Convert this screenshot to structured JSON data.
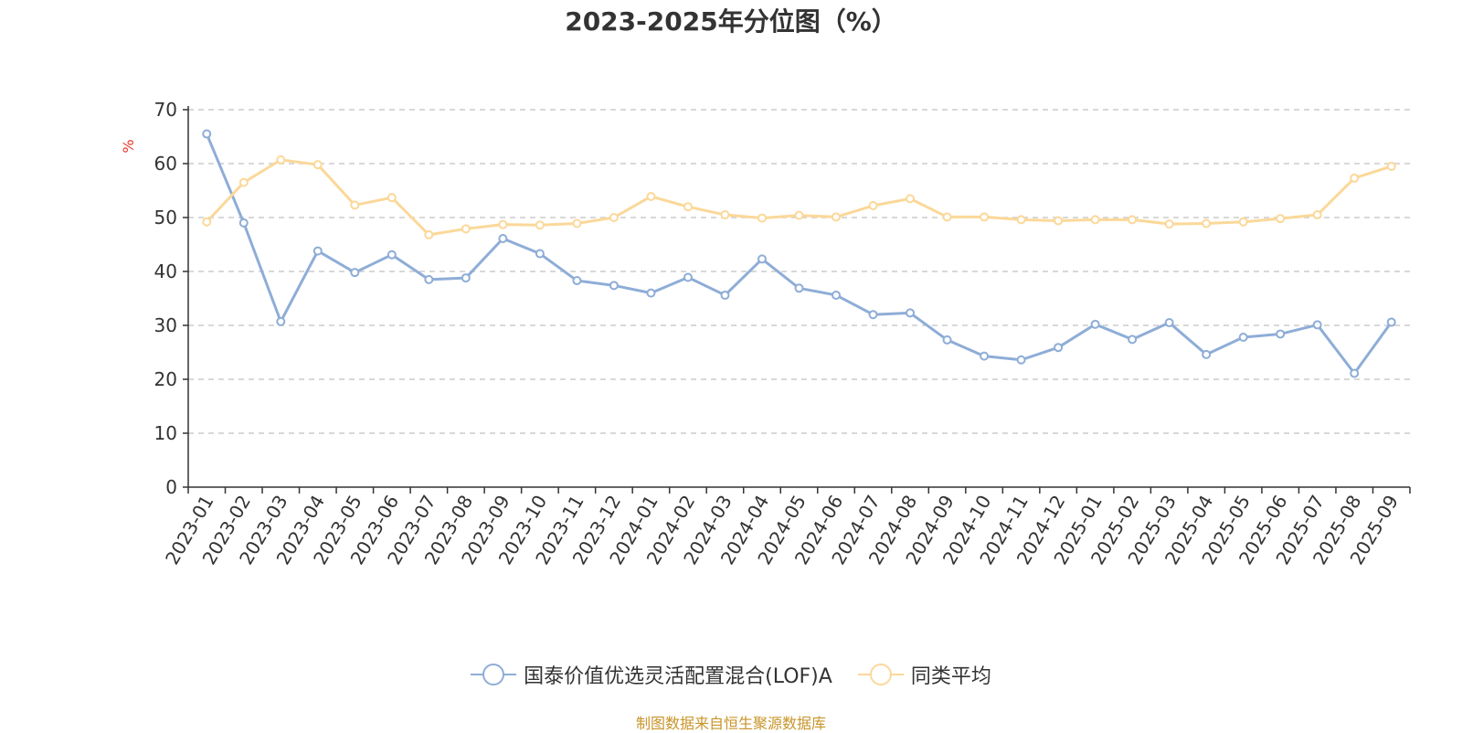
{
  "chart_data": {
    "type": "line",
    "title": "2023-2025年分位图（%）",
    "ylabel": "%",
    "ylim": [
      0,
      70
    ],
    "yticks": [
      0,
      10,
      20,
      30,
      40,
      50,
      60,
      70
    ],
    "grid": "horizontal-dashed",
    "legend_position": "bottom-center",
    "categories": [
      "2023-01",
      "2023-02",
      "2023-03",
      "2023-04",
      "2023-05",
      "2023-06",
      "2023-07",
      "2023-08",
      "2023-09",
      "2023-10",
      "2023-11",
      "2023-12",
      "2024-01",
      "2024-02",
      "2024-03",
      "2024-04",
      "2024-05",
      "2024-06",
      "2024-07",
      "2024-08",
      "2024-09",
      "2024-10",
      "2024-11",
      "2024-12",
      "2025-01",
      "2025-02",
      "2025-03",
      "2025-04",
      "2025-05",
      "2025-06",
      "2025-07",
      "2025-08",
      "2025-09"
    ],
    "series": [
      {
        "name": "国泰价值优选灵活配置混合(LOF)A",
        "color": "#8eadd7",
        "values": [
          65.5,
          49,
          30.7,
          43.8,
          39.8,
          43.1,
          38.5,
          38.8,
          46.1,
          43.3,
          38.3,
          37.4,
          36,
          38.9,
          35.6,
          42.3,
          36.9,
          35.6,
          32,
          32.3,
          27.3,
          24.3,
          23.6,
          25.9,
          30.2,
          27.4,
          30.5,
          24.6,
          27.8,
          28.4,
          30.1,
          21.1,
          30.6
        ]
      },
      {
        "name": "同类平均",
        "color": "#fbd899",
        "values": [
          49.2,
          56.5,
          60.7,
          59.8,
          52.3,
          53.7,
          46.8,
          47.9,
          48.7,
          48.6,
          48.9,
          50,
          53.9,
          52,
          50.5,
          49.9,
          50.4,
          50.1,
          52.2,
          53.5,
          50.1,
          50.1,
          49.6,
          49.4,
          49.6,
          49.6,
          48.8,
          48.9,
          49.2,
          49.8,
          50.5,
          57.3,
          59.5
        ]
      }
    ]
  },
  "source_note": "制图数据来自恒生聚源数据库"
}
